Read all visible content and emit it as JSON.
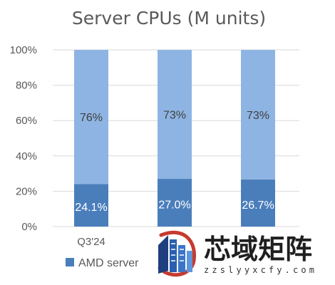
{
  "chart_data": {
    "type": "bar",
    "stacked": true,
    "percent": true,
    "title": "Server CPUs (M units)",
    "categories": [
      "Q3'24",
      "",
      ""
    ],
    "series": [
      {
        "name": "AMD server",
        "color": "#4a7ebb",
        "values": [
          24.1,
          27.0,
          26.7
        ],
        "labels": [
          "24.1%",
          "27.0%",
          "26.7%"
        ]
      },
      {
        "color": "#8eb4e3",
        "values": [
          75.9,
          73.0,
          73.3
        ],
        "labels": [
          "76%",
          "73%",
          "73%"
        ]
      }
    ],
    "ylim": [
      0,
      100
    ],
    "yticks": [
      "0%",
      "20%",
      "40%",
      "60%",
      "80%",
      "100%"
    ],
    "grid": true,
    "legend": "bottom-left"
  },
  "watermark": {
    "text": "芯域矩阵",
    "url": "zzslyyxcfy.com",
    "icon": "building-shield-logo"
  }
}
